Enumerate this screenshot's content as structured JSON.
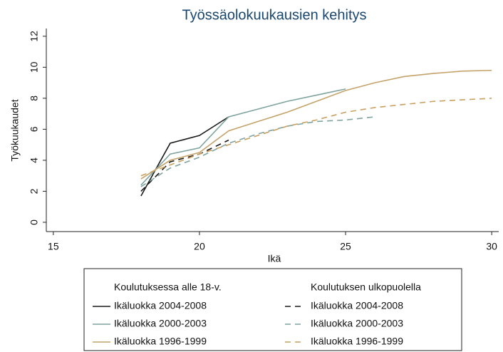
{
  "chart_data": {
    "type": "line",
    "title": "Työssäolokuukausien kehitys",
    "x_label": "Ikä",
    "y_label": "Työkuukaudet",
    "xlim": [
      14.76,
      30.24
    ],
    "xticks": [
      15,
      20,
      25,
      30
    ],
    "ylim": [
      -0.6,
      12.5
    ],
    "yticks": [
      0,
      2,
      4,
      6,
      8,
      10,
      12
    ],
    "legend_headers": [
      "Koulutuksessa alle 18-v.",
      "Koulutuksen ulkopuolella"
    ],
    "series": [
      {
        "name": "Ikäluokka 2004-2008",
        "color": "#1a1a1a",
        "dash": false,
        "x": [
          18,
          19,
          20,
          21
        ],
        "values": [
          1.7,
          5.1,
          5.6,
          6.8
        ]
      },
      {
        "name": "Ikäluokka 2000-2003",
        "color": "#7fa39e",
        "dash": false,
        "x": [
          18,
          19,
          20,
          21,
          22,
          23,
          24,
          25
        ],
        "values": [
          2.4,
          4.4,
          4.8,
          6.8,
          7.3,
          7.8,
          8.2,
          8.6
        ]
      },
      {
        "name": "Ikäluokka 1996-1999",
        "color": "#c4a36a",
        "dash": false,
        "x": [
          18,
          19,
          20,
          21,
          22,
          23,
          24,
          25,
          26,
          27,
          28,
          29,
          30
        ],
        "values": [
          2.8,
          4.0,
          4.5,
          5.9,
          6.5,
          7.1,
          7.8,
          8.5,
          9.0,
          9.4,
          9.6,
          9.75,
          9.8
        ]
      },
      {
        "name": "Ikäluokka 2004-2008",
        "color": "#1a1a1a",
        "dash": true,
        "x": [
          18,
          19,
          20,
          21
        ],
        "values": [
          2.0,
          3.9,
          4.4,
          5.3
        ]
      },
      {
        "name": "Ikäluokka 2000-2003",
        "color": "#7fa39e",
        "dash": true,
        "x": [
          18,
          19,
          20,
          21,
          22,
          23,
          24,
          25,
          26
        ],
        "values": [
          2.3,
          3.5,
          4.2,
          5.1,
          5.7,
          6.2,
          6.5,
          6.6,
          6.8
        ]
      },
      {
        "name": "Ikäluokka 1996-1999",
        "color": "#c8a060",
        "dash": true,
        "x": [
          18,
          19,
          20,
          21,
          22,
          23,
          24,
          25,
          26,
          27,
          28,
          29,
          30
        ],
        "values": [
          3.0,
          3.7,
          4.4,
          5.0,
          5.6,
          6.2,
          6.6,
          7.1,
          7.4,
          7.6,
          7.8,
          7.9,
          8.0
        ]
      }
    ]
  }
}
